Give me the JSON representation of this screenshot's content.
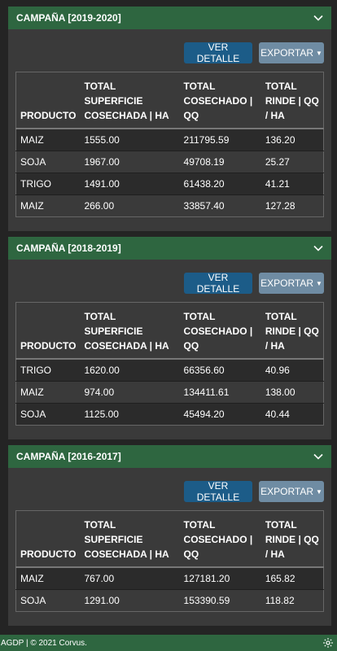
{
  "buttons": {
    "details": "VER DETALLE",
    "export": "EXPORTAR"
  },
  "table_headers": [
    "PRODUCTO",
    "TOTAL SUPERFICIE COSECHADA | HA",
    "TOTAL COSECHADO | QQ",
    "TOTAL RINDE | QQ / HA"
  ],
  "campaigns": [
    {
      "title": "CAMPAÑA [2019-2020]",
      "rows": [
        [
          "MAIZ",
          "1555.00",
          "211795.59",
          "136.20"
        ],
        [
          "SOJA",
          "1967.00",
          "49708.19",
          "25.27"
        ],
        [
          "TRIGO",
          "1491.00",
          "61438.20",
          "41.21"
        ],
        [
          "MAIZ",
          "266.00",
          "33857.40",
          "127.28"
        ]
      ]
    },
    {
      "title": "CAMPAÑA [2018-2019]",
      "rows": [
        [
          "TRIGO",
          "1620.00",
          "66356.60",
          "40.96"
        ],
        [
          "MAIZ",
          "974.00",
          "134411.61",
          "138.00"
        ],
        [
          "SOJA",
          "1125.00",
          "45494.20",
          "40.44"
        ]
      ]
    },
    {
      "title": "CAMPAÑA [2016-2017]",
      "rows": [
        [
          "MAIZ",
          "767.00",
          "127181.20",
          "165.82"
        ],
        [
          "SOJA",
          "1291.00",
          "153390.59",
          "118.82"
        ]
      ]
    }
  ],
  "footer": {
    "text": "AGDP | © 2021 Corvus."
  },
  "icons": {
    "collapse": "chevron-down-icon",
    "settings": "gear-icon",
    "dropdown": "caret-down-icon"
  }
}
